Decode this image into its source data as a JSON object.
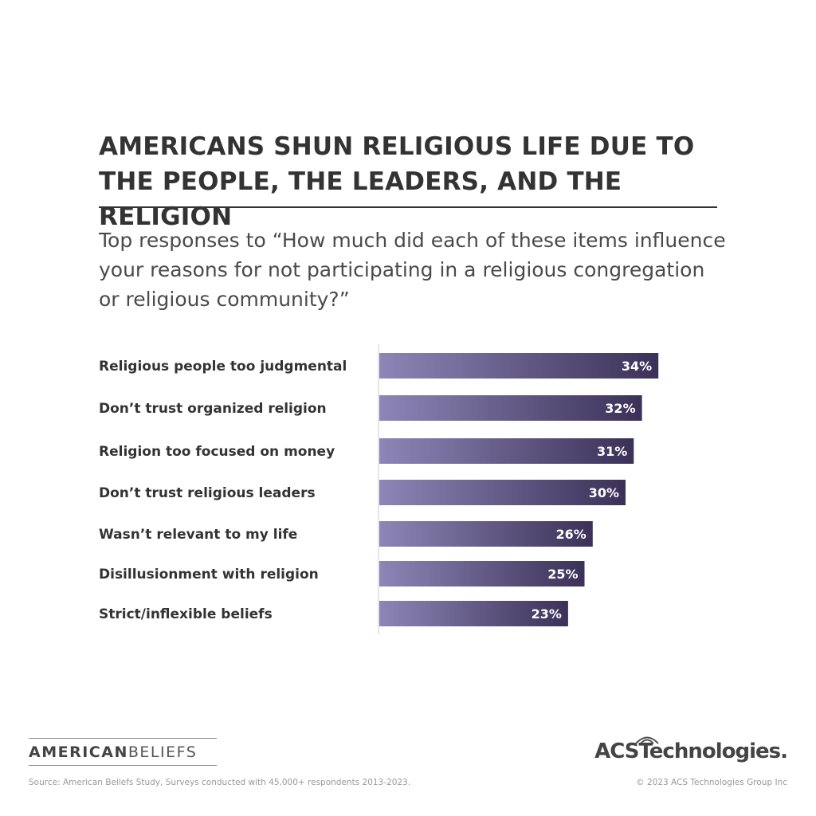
{
  "title": "AMERICANS SHUN RELIGIOUS LIFE DUE TO THE PEOPLE, THE LEADERS, AND THE RELIGION",
  "subtitle": "Top responses to “How much did each of these items influence your reasons for not participating in a religious congregation or religious community?”",
  "chart_data": {
    "type": "bar",
    "orientation": "horizontal",
    "categories": [
      "Religious people too judgmental",
      "Don’t trust organized religion",
      "Religion too focused on money",
      "Don’t trust religious leaders",
      "Wasn’t relevant to my life",
      "Disillusionment with religion",
      "Strict/inflexible beliefs"
    ],
    "values": [
      34,
      32,
      31,
      30,
      26,
      25,
      23
    ],
    "value_labels": [
      "34%",
      "32%",
      "31%",
      "30%",
      "26%",
      "25%",
      "23%"
    ],
    "unit": "%",
    "grid": false,
    "legend": "none",
    "colors": {
      "bar_start": "#8d86b6",
      "bar_end": "#3b3158",
      "axis": "#cccccc"
    }
  },
  "footer": {
    "brand_left_a": "AM",
    "brand_left_b": "E",
    "brand_left_c": "RICAN",
    "brand_left_d": "BELIEFS",
    "brand_right": "ACSTechnologies.",
    "source": "Source: American Beliefs Study, Surveys conducted with 45,000+ respondents 2013-2023.",
    "copyright": "© 2023 ACS Technologies Group Inc"
  }
}
